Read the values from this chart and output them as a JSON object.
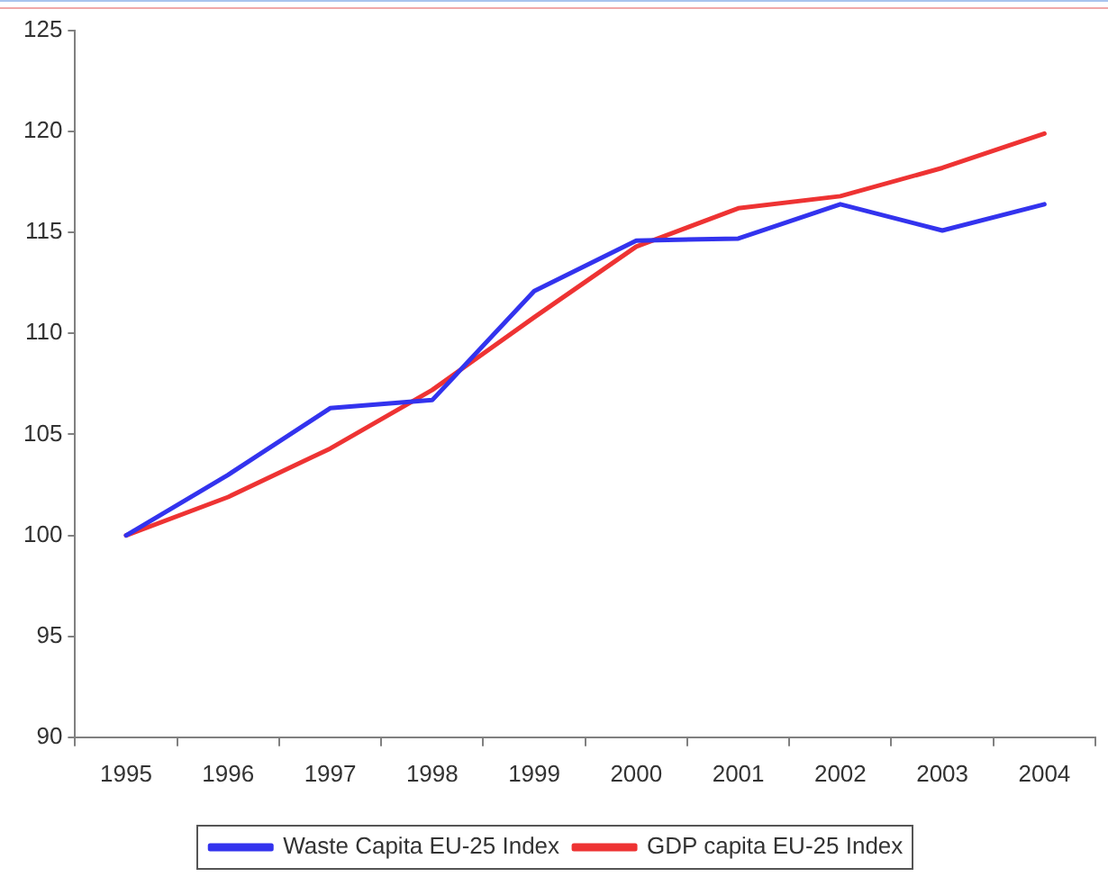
{
  "chart_data": {
    "type": "line",
    "categories": [
      "1995",
      "1996",
      "1997",
      "1998",
      "1999",
      "2000",
      "2001",
      "2002",
      "2003",
      "2004"
    ],
    "series": [
      {
        "name": "Waste Capita EU-25 Index",
        "color": "#3333ee",
        "values": [
          100,
          103,
          106.3,
          106.7,
          112.1,
          114.6,
          114.7,
          116.4,
          115.1,
          116.4
        ]
      },
      {
        "name": "GDP capita EU-25 Index",
        "color": "#ee3333",
        "values": [
          100,
          101.9,
          104.3,
          107.2,
          110.8,
          114.3,
          116.2,
          116.8,
          118.2,
          119.9
        ]
      }
    ],
    "ylim": [
      90,
      125
    ],
    "yticks": [
      90,
      95,
      100,
      105,
      110,
      115,
      120,
      125
    ],
    "grid": false,
    "legend": "bottom",
    "marker": "none",
    "line_style": "solid"
  }
}
